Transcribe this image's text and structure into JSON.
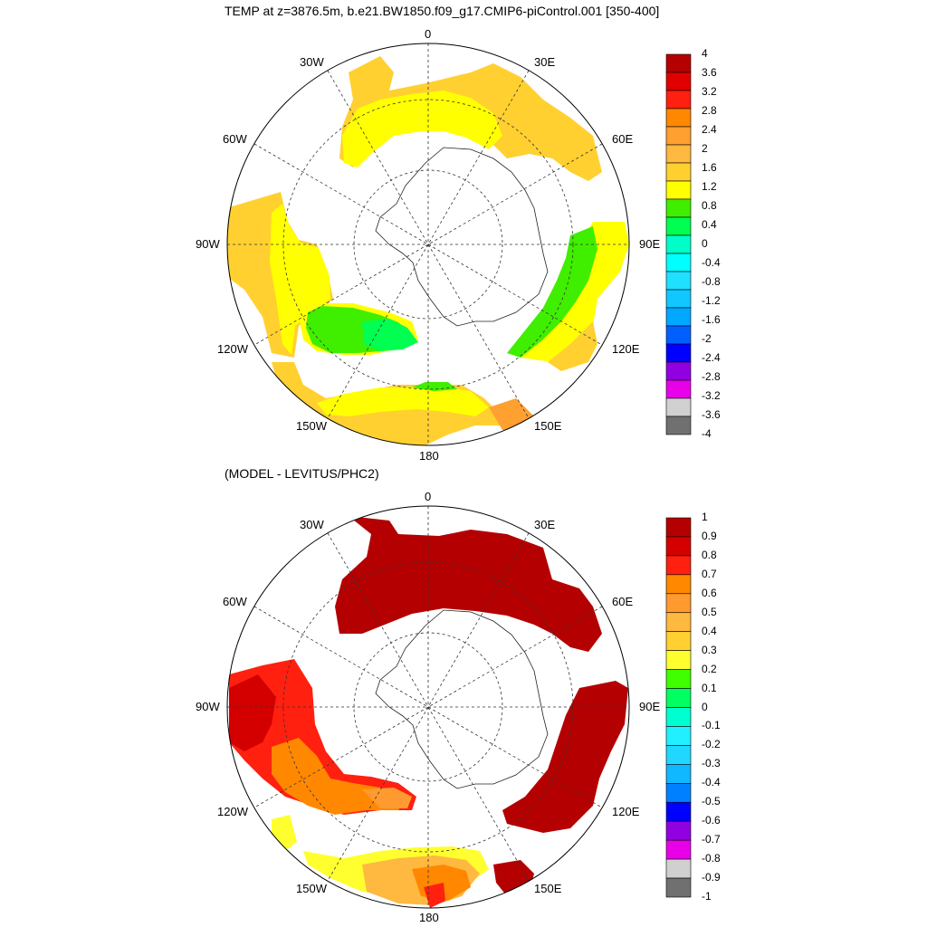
{
  "top_panel": {
    "title": "TEMP at z=3876.5m, b.e21.BW1850.f09_g17.CMIP6-piControl.001 [350-400]",
    "colorbar_labels": [
      "4",
      "3.6",
      "3.2",
      "2.8",
      "2.4",
      "2",
      "1.6",
      "1.2",
      "0.8",
      "0.4",
      "0",
      "-0.4",
      "-0.8",
      "-1.2",
      "-1.6",
      "-2",
      "-2.4",
      "-2.8",
      "-3.2",
      "-3.6",
      "-4"
    ]
  },
  "bottom_panel": {
    "title": "(MODEL - LEVITUS/PHC2)",
    "colorbar_labels": [
      "1",
      "0.9",
      "0.8",
      "0.7",
      "0.6",
      "0.5",
      "0.4",
      "0.3",
      "0.2",
      "0.1",
      "0",
      "-0.1",
      "-0.2",
      "-0.3",
      "-0.4",
      "-0.5",
      "-0.6",
      "-0.7",
      "-0.8",
      "-0.9",
      "-1"
    ]
  },
  "longitude_labels": {
    "top": "0",
    "e30": "30E",
    "e60": "60E",
    "e90": "90E",
    "e120": "120E",
    "e150": "150E",
    "bottom": "180",
    "w150": "150W",
    "w120": "120W",
    "w90": "90W",
    "w60": "60W",
    "w30": "30W"
  },
  "colors": {
    "colorbar_top": [
      "#b40000",
      "#e00000",
      "#ff2010",
      "#ff8800",
      "#ffa030",
      "#ffb840",
      "#ffd030",
      "#ffff00",
      "#40ee00",
      "#00ff50",
      "#00ffc8",
      "#00ffff",
      "#20e0ff",
      "#10c8ff",
      "#00a8ff",
      "#0060ff",
      "#0000ff",
      "#9000e0",
      "#e800e8",
      "#d0d0d0",
      "#707070"
    ],
    "colorbar_bottom": [
      "#b40000",
      "#d40000",
      "#ff2010",
      "#ff8800",
      "#ff9a30",
      "#ffb840",
      "#ffd030",
      "#ffff30",
      "#40ff00",
      "#00ff60",
      "#00ffd0",
      "#20f0ff",
      "#20d8ff",
      "#10b8ff",
      "#0080ff",
      "#0000ff",
      "#9000e0",
      "#e800e8",
      "#d0d0d0",
      "#707070"
    ]
  }
}
